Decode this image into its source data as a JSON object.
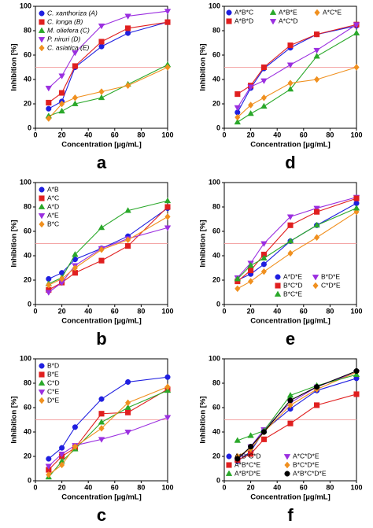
{
  "chart_data": [
    {
      "type": "line",
      "label": "a",
      "xlabel": "Concentration [µg/mL]",
      "ylabel": "Inhibition [%]",
      "x": [
        10,
        20,
        30,
        50,
        70,
        100
      ],
      "xlim": [
        0,
        100
      ],
      "ylim": [
        0,
        100
      ],
      "xticks": [
        0,
        20,
        40,
        60,
        80,
        100
      ],
      "yticks": [
        0,
        20,
        40,
        60,
        80,
        100
      ],
      "ref_line": 50,
      "ref_color": "#f4a6a6",
      "legend": "top-left",
      "legend_columns": 1,
      "series": [
        {
          "name": "C. xanthoriza (A)",
          "color": "#1f1fe0",
          "marker": "circle",
          "values": [
            16,
            22,
            50,
            67,
            78,
            87
          ]
        },
        {
          "name": "C. longa (B)",
          "color": "#e01f1f",
          "marker": "square",
          "values": [
            21,
            29,
            51,
            71,
            82,
            87
          ]
        },
        {
          "name": "M. oliefera (C)",
          "color": "#2aa82a",
          "marker": "triangle",
          "values": [
            10,
            14,
            20,
            25,
            36,
            52
          ]
        },
        {
          "name": "P. niruri (D)",
          "color": "#9b2fe0",
          "marker": "down",
          "values": [
            33,
            43,
            62,
            84,
            92,
            96
          ]
        },
        {
          "name": "C. asiatica (E)",
          "color": "#f0901f",
          "marker": "diamond",
          "values": [
            8,
            20,
            25,
            30,
            35,
            50
          ]
        }
      ]
    },
    {
      "type": "line",
      "label": "d",
      "xlabel": "Concentration [µg/mL]",
      "ylabel": "Inhibition [%]",
      "x": [
        10,
        20,
        30,
        50,
        70,
        100
      ],
      "xlim": [
        0,
        100
      ],
      "ylim": [
        0,
        100
      ],
      "xticks": [
        0,
        20,
        40,
        60,
        80,
        100
      ],
      "yticks": [
        0,
        20,
        40,
        60,
        80,
        100
      ],
      "ref_line": 50,
      "ref_color": "#f4a6a6",
      "legend": "top",
      "legend_columns": 3,
      "series": [
        {
          "name": "A*B*C",
          "color": "#1f1fe0",
          "marker": "circle",
          "values": [
            13,
            33,
            49,
            66,
            77,
            84
          ]
        },
        {
          "name": "A*B*E",
          "color": "#2aa82a",
          "marker": "triangle",
          "values": [
            5,
            12,
            18,
            32,
            59,
            78
          ]
        },
        {
          "name": "A*C*E",
          "color": "#f0901f",
          "marker": "diamond",
          "values": [
            9,
            19,
            25,
            37,
            40,
            50
          ]
        },
        {
          "name": "A*B*D",
          "color": "#e01f1f",
          "marker": "square",
          "values": [
            28,
            35,
            50,
            68,
            77,
            85
          ]
        },
        {
          "name": "A*C*D",
          "color": "#9b2fe0",
          "marker": "down",
          "values": [
            17,
            34,
            39,
            52,
            64,
            85
          ]
        }
      ]
    },
    {
      "type": "line",
      "label": "b",
      "xlabel": "Concentration [µg/mL]",
      "ylabel": "Inhibition [%]",
      "x": [
        10,
        20,
        30,
        50,
        70,
        100
      ],
      "xlim": [
        0,
        100
      ],
      "ylim": [
        0,
        100
      ],
      "xticks": [
        0,
        20,
        40,
        60,
        80,
        100
      ],
      "yticks": [
        0,
        20,
        40,
        60,
        80,
        100
      ],
      "ref_line": 50,
      "ref_color": "#f4a6a6",
      "legend": "top-left",
      "legend_columns": 1,
      "series": [
        {
          "name": "A*B",
          "color": "#1f1fe0",
          "marker": "circle",
          "values": [
            21,
            26,
            37,
            46,
            56,
            79
          ]
        },
        {
          "name": "A*C",
          "color": "#e01f1f",
          "marker": "square",
          "values": [
            12,
            18,
            26,
            36,
            48,
            80
          ]
        },
        {
          "name": "A*D",
          "color": "#2aa82a",
          "marker": "triangle",
          "values": [
            17,
            22,
            41,
            63,
            77,
            85
          ]
        },
        {
          "name": "A*E",
          "color": "#9b2fe0",
          "marker": "down",
          "values": [
            10,
            18,
            32,
            46,
            54,
            63
          ]
        },
        {
          "name": "B*C",
          "color": "#f0901f",
          "marker": "diamond",
          "values": [
            16,
            21,
            30,
            45,
            53,
            72
          ]
        }
      ]
    },
    {
      "type": "line",
      "label": "e",
      "xlabel": "Concentration [µg/mL]",
      "ylabel": "Inhibition [%]",
      "x": [
        10,
        20,
        30,
        50,
        70,
        100
      ],
      "xlim": [
        0,
        100
      ],
      "ylim": [
        0,
        100
      ],
      "xticks": [
        0,
        20,
        40,
        60,
        80,
        100
      ],
      "yticks": [
        0,
        20,
        40,
        60,
        80,
        100
      ],
      "ref_line": 50,
      "ref_color": "#f4a6a6",
      "legend": "bottom-right",
      "legend_columns": 2,
      "series": [
        {
          "name": "A*D*E",
          "color": "#1f1fe0",
          "marker": "circle",
          "values": [
            20,
            25,
            33,
            52,
            65,
            83
          ]
        },
        {
          "name": "B*D*E",
          "color": "#9b2fe0",
          "marker": "down",
          "values": [
            22,
            34,
            50,
            72,
            79,
            88
          ]
        },
        {
          "name": "B*C*D",
          "color": "#e01f1f",
          "marker": "square",
          "values": [
            19,
            28,
            41,
            65,
            76,
            87
          ]
        },
        {
          "name": "C*D*E",
          "color": "#f0901f",
          "marker": "diamond",
          "values": [
            13,
            19,
            27,
            42,
            55,
            76
          ]
        },
        {
          "name": "B*C*E",
          "color": "#2aa82a",
          "marker": "triangle",
          "values": [
            21,
            32,
            38,
            52,
            65,
            79
          ]
        }
      ]
    },
    {
      "type": "line",
      "label": "c",
      "xlabel": "Concentration [µg/mL]",
      "ylabel": "Inhibition [%]",
      "x": [
        10,
        20,
        30,
        50,
        70,
        100
      ],
      "xlim": [
        0,
        100
      ],
      "ylim": [
        0,
        100
      ],
      "xticks": [
        0,
        20,
        40,
        60,
        80,
        100
      ],
      "yticks": [
        0,
        20,
        40,
        60,
        80,
        100
      ],
      "ref_line": 50,
      "ref_color": "#f4a6a6",
      "legend": "top-left",
      "legend_columns": 1,
      "series": [
        {
          "name": "B*D",
          "color": "#1f1fe0",
          "marker": "circle",
          "values": [
            18,
            27,
            44,
            67,
            81,
            85
          ]
        },
        {
          "name": "B*E",
          "color": "#e01f1f",
          "marker": "square",
          "values": [
            9,
            20,
            27,
            55,
            56,
            75
          ]
        },
        {
          "name": "C*D",
          "color": "#2aa82a",
          "marker": "triangle",
          "values": [
            3,
            16,
            26,
            48,
            60,
            74
          ]
        },
        {
          "name": "C*E",
          "color": "#9b2fe0",
          "marker": "down",
          "values": [
            12,
            22,
            29,
            34,
            40,
            52
          ]
        },
        {
          "name": "D*E",
          "color": "#f0901f",
          "marker": "diamond",
          "values": [
            5,
            13,
            28,
            43,
            64,
            77
          ]
        }
      ]
    },
    {
      "type": "line",
      "label": "f",
      "xlabel": "Concentration [µg/mL]",
      "ylabel": "Inhibition [%]",
      "x": [
        10,
        20,
        30,
        50,
        70,
        100
      ],
      "xlim": [
        0,
        100
      ],
      "ylim": [
        0,
        100
      ],
      "xticks": [
        0,
        20,
        40,
        60,
        80,
        100
      ],
      "yticks": [
        0,
        20,
        40,
        60,
        80,
        100
      ],
      "ref_line": 50,
      "ref_color": "#f4a6a6",
      "legend": "bottom",
      "legend_columns": 2,
      "series": [
        {
          "name": "A*B*C*D",
          "color": "#1f1fe0",
          "marker": "circle",
          "values": [
            16,
            24,
            41,
            59,
            74,
            84
          ]
        },
        {
          "name": "A*C*D*E",
          "color": "#9b2fe0",
          "marker": "down",
          "values": [
            17,
            28,
            42,
            64,
            77,
            89
          ]
        },
        {
          "name": "A*B*C*E",
          "color": "#e01f1f",
          "marker": "square",
          "values": [
            17,
            22,
            34,
            47,
            62,
            71
          ]
        },
        {
          "name": "B*C*D*E",
          "color": "#f0901f",
          "marker": "diamond",
          "values": [
            20,
            26,
            40,
            62,
            75,
            89
          ]
        },
        {
          "name": "A*B*D*E",
          "color": "#2aa82a",
          "marker": "triangle",
          "values": [
            33,
            37,
            41,
            70,
            78,
            87
          ]
        },
        {
          "name": "A*B*C*D*E",
          "color": "#000000",
          "marker": "circle",
          "values": [
            18,
            28,
            40,
            66,
            77,
            90
          ]
        }
      ]
    }
  ]
}
